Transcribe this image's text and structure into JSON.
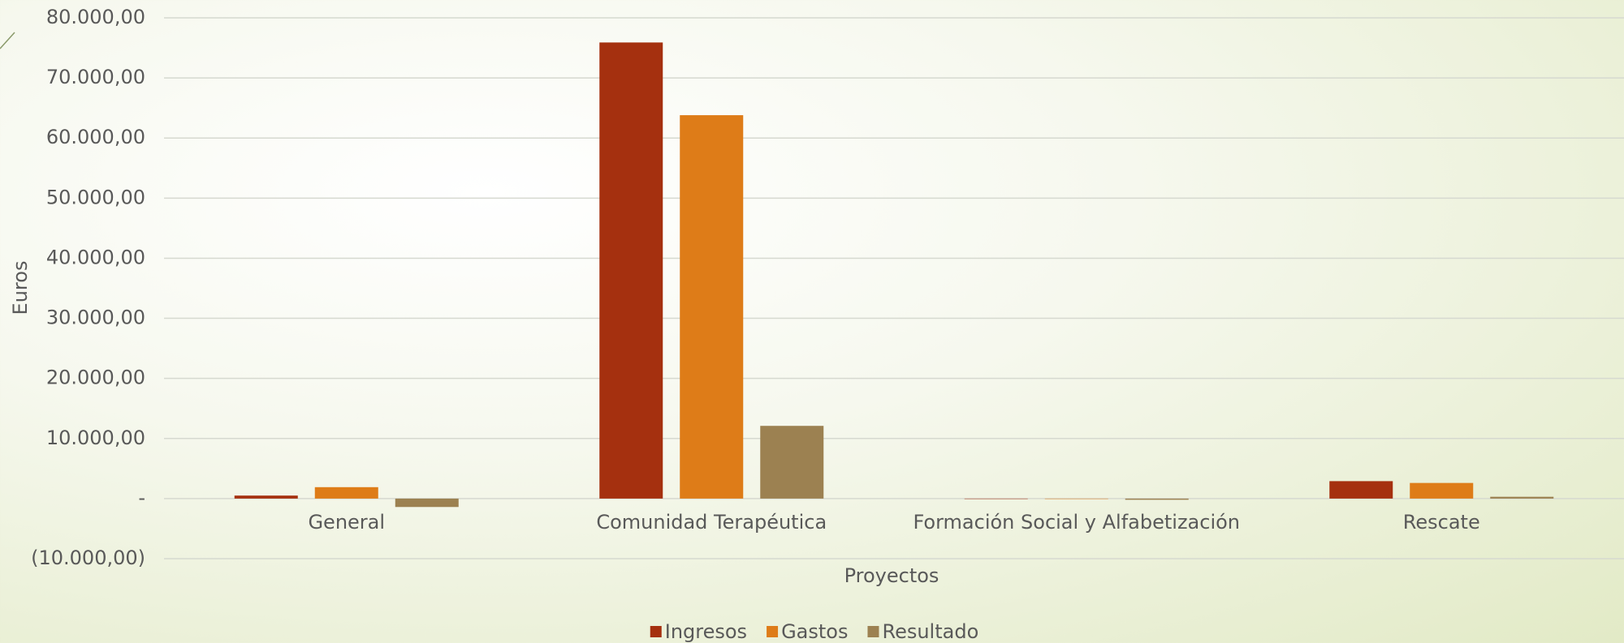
{
  "chart_data": {
    "type": "bar",
    "categories": [
      "General",
      "Comunidad Terapéutica",
      "Formación Social y Alfabetización",
      "Rescate"
    ],
    "series": [
      {
        "name": "Ingresos",
        "color": "#a5300f",
        "values": [
          500,
          75900,
          0,
          2900
        ]
      },
      {
        "name": "Gastos",
        "color": "#de7c18",
        "values": [
          1900,
          63800,
          0,
          2600
        ]
      },
      {
        "name": "Resultado",
        "color": "#9c8151",
        "values": [
          -1400,
          12100,
          -200,
          300
        ]
      }
    ],
    "ylim": [
      -10000,
      80000
    ],
    "yticks": [
      {
        "value": -10000,
        "label": "(10.000,00)"
      },
      {
        "value": 0,
        "label": "-"
      },
      {
        "value": 10000,
        "label": "10.000,00"
      },
      {
        "value": 20000,
        "label": "20.000,00"
      },
      {
        "value": 30000,
        "label": "30.000,00"
      },
      {
        "value": 40000,
        "label": "40.000,00"
      },
      {
        "value": 50000,
        "label": "50.000,00"
      },
      {
        "value": 60000,
        "label": "60.000,00"
      },
      {
        "value": 70000,
        "label": "70.000,00"
      },
      {
        "value": 80000,
        "label": "80.000,00"
      }
    ],
    "x_label": "Proyectos",
    "y_label": "Euros",
    "grid": true,
    "legend": "bottom"
  }
}
